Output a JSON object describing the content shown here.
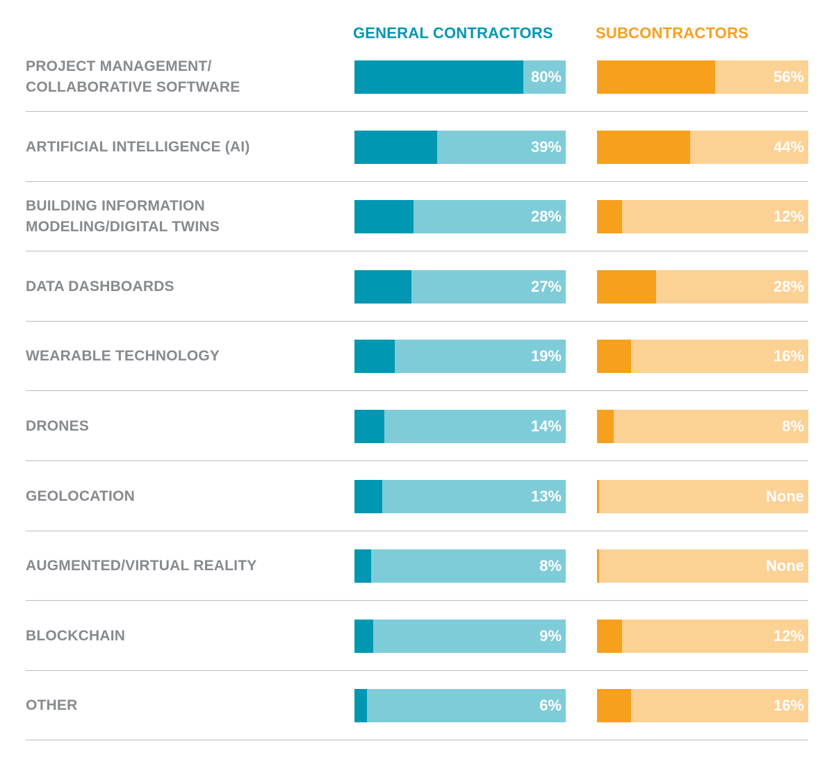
{
  "legend": {
    "general": "GENERAL CONTRACTORS",
    "sub": "SUBCONTRACTORS"
  },
  "colors": {
    "general_fill": "#0097b2",
    "general_track": "#7fccd9",
    "sub_fill": "#f6a01e",
    "sub_track": "#fcd194"
  },
  "chart_data": {
    "type": "bar",
    "orientation": "horizontal",
    "xlim": [
      0,
      100
    ],
    "categories": [
      "PROJECT MANAGEMENT/ COLLABORATIVE SOFTWARE",
      "ARTIFICIAL INTELLIGENCE (AI)",
      "BUILDING INFORMATION MODELING/DIGITAL TWINS",
      "DATA DASHBOARDS",
      "WEARABLE TECHNOLOGY",
      "DRONES",
      "GEOLOCATION",
      "AUGMENTED/VIRTUAL REALITY",
      "BLOCKCHAIN",
      "OTHER"
    ],
    "series": [
      {
        "name": "GENERAL CONTRACTORS",
        "values": [
          80,
          39,
          28,
          27,
          19,
          14,
          13,
          8,
          9,
          6
        ],
        "labels": [
          "80%",
          "39%",
          "28%",
          "27%",
          "19%",
          "14%",
          "13%",
          "8%",
          "9%",
          "6%"
        ]
      },
      {
        "name": "SUBCONTRACTORS",
        "values": [
          56,
          44,
          12,
          28,
          16,
          8,
          0,
          0,
          12,
          16
        ],
        "labels": [
          "56%",
          "44%",
          "12%",
          "28%",
          "16%",
          "8%",
          "None",
          "None",
          "12%",
          "16%"
        ]
      }
    ]
  }
}
